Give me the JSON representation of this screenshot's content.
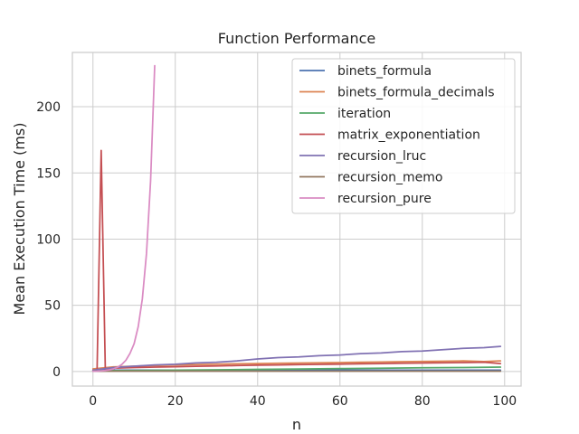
{
  "chart_data": {
    "type": "line",
    "title": "Function Performance",
    "xlabel": "n",
    "ylabel": "Mean Execution Time (ms)",
    "xlim": [
      -5,
      104
    ],
    "ylim": [
      -11,
      241
    ],
    "xticks": [
      0,
      20,
      40,
      60,
      80,
      100
    ],
    "yticks": [
      0,
      50,
      100,
      150,
      200
    ],
    "xtick_labels": [
      "0",
      "20",
      "40",
      "60",
      "80",
      "100"
    ],
    "ytick_labels": [
      "0",
      "50",
      "100",
      "150",
      "200"
    ],
    "grid": true,
    "legend_position": "top-right",
    "series": [
      {
        "name": "binets_formula",
        "color": "#4c72b0",
        "x": [
          0,
          10,
          20,
          30,
          40,
          50,
          60,
          70,
          80,
          90,
          99
        ],
        "y": [
          1.0,
          1.0,
          1.0,
          1.0,
          1.0,
          1.0,
          1.0,
          1.0,
          1.0,
          1.0,
          1.0
        ]
      },
      {
        "name": "binets_formula_decimals",
        "color": "#dd8452",
        "x": [
          0,
          5,
          10,
          15,
          20,
          25,
          30,
          35,
          40,
          45,
          50,
          55,
          60,
          65,
          70,
          75,
          80,
          85,
          90,
          95,
          99
        ],
        "y": [
          2.0,
          3.5,
          4.0,
          4.5,
          5.0,
          5.2,
          5.6,
          5.8,
          6.0,
          6.2,
          6.4,
          6.6,
          6.8,
          7.0,
          7.2,
          7.4,
          7.6,
          7.8,
          8.0,
          7.5,
          8.0
        ]
      },
      {
        "name": "iteration",
        "color": "#55a868",
        "x": [
          0,
          10,
          20,
          30,
          40,
          50,
          60,
          70,
          80,
          90,
          99
        ],
        "y": [
          0.5,
          0.8,
          1.0,
          1.3,
          1.6,
          1.9,
          2.2,
          2.5,
          2.8,
          3.0,
          3.3
        ]
      },
      {
        "name": "matrix_exponentiation",
        "color": "#c44e52",
        "x": [
          0,
          1,
          2,
          3,
          5,
          10,
          15,
          20,
          25,
          30,
          35,
          40,
          45,
          50,
          55,
          60,
          65,
          70,
          75,
          80,
          85,
          90,
          95,
          99
        ],
        "y": [
          0.5,
          1.0,
          167.0,
          2.0,
          2.5,
          3.0,
          3.3,
          3.6,
          3.9,
          4.2,
          4.5,
          4.8,
          5.0,
          5.2,
          5.4,
          5.6,
          5.8,
          6.0,
          6.2,
          6.4,
          6.6,
          6.8,
          7.0,
          6.0
        ]
      },
      {
        "name": "recursion_lruc",
        "color": "#8172b3",
        "x": [
          0,
          5,
          10,
          15,
          20,
          25,
          30,
          35,
          40,
          45,
          50,
          55,
          60,
          65,
          70,
          75,
          80,
          85,
          90,
          95,
          99
        ],
        "y": [
          1.0,
          3.0,
          4.0,
          5.0,
          5.5,
          6.5,
          7.0,
          8.0,
          9.5,
          10.5,
          11.0,
          12.0,
          12.5,
          13.5,
          14.0,
          15.0,
          15.5,
          16.5,
          17.5,
          18.0,
          19.0
        ]
      },
      {
        "name": "recursion_memo",
        "color": "#937860",
        "x": [
          0,
          10,
          20,
          30,
          40,
          50,
          60,
          70,
          80,
          90,
          99
        ],
        "y": [
          0.3,
          0.3,
          0.3,
          0.3,
          0.3,
          0.3,
          0.3,
          0.3,
          0.3,
          0.3,
          0.3
        ]
      },
      {
        "name": "recursion_pure",
        "color": "#da8bc3",
        "x": [
          0,
          1,
          2,
          3,
          4,
          5,
          6,
          7,
          8,
          9,
          10,
          11,
          12,
          13,
          14,
          15
        ],
        "y": [
          0.2,
          0.3,
          0.5,
          0.8,
          1.3,
          2.0,
          3.3,
          5.3,
          8.5,
          13.7,
          21.0,
          34.0,
          55.0,
          89.0,
          144.0,
          231.0
        ]
      }
    ]
  }
}
